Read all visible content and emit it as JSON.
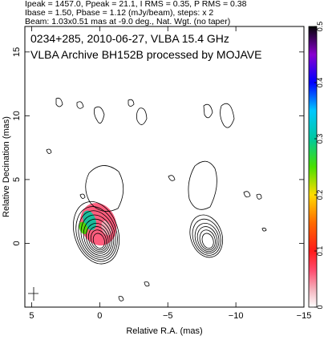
{
  "header": {
    "lines": [
      "Ipeak = 1457.0, Ppeak = 21.1, I RMS = 0.35, P RMS = 0.38",
      "Ibase = 1.50, Pbase = 1.12 (mJy/beam), steps: x 2",
      "Beam: 1.03x0.51 mas at -9.0 deg., Nat. Wgt. (no taper)"
    ]
  },
  "chart_data": {
    "type": "contour",
    "title_lines": [
      "0234+285, 2010-06-27, VLBA 15.4 GHz",
      "VLBA Archive BH152B processed by MOJAVE"
    ],
    "xlabel": "Relative R.A. (mas)",
    "ylabel": "Relative Decination (mas)",
    "xlim": [
      5.5,
      -15
    ],
    "ylim": [
      -5,
      17
    ],
    "xticks": [
      5,
      0,
      -5,
      -10,
      -15
    ],
    "yticks": [
      0,
      5,
      10,
      15
    ],
    "colorbar": {
      "range": [
        0,
        0.5
      ],
      "ticks": [
        0,
        0.1,
        0.2,
        0.3,
        0.4,
        0.5
      ]
    },
    "panels": [
      {
        "name": "Stokes I contours (left)",
        "center": [
          0,
          0
        ],
        "contours": [
          {
            "rx": 0.4,
            "ry": 0.6
          },
          {
            "rx": 0.55,
            "ry": 0.8
          },
          {
            "rx": 0.7,
            "ry": 1.0
          },
          {
            "rx": 0.85,
            "ry": 1.2
          },
          {
            "rx": 1.0,
            "ry": 1.45
          },
          {
            "rx": 1.15,
            "ry": 1.7
          },
          {
            "rx": 1.3,
            "ry": 1.95
          },
          {
            "rx": 1.45,
            "ry": 2.2
          },
          {
            "rx": 1.6,
            "ry": 2.5
          }
        ],
        "color_blobs": [
          {
            "x": 0.1,
            "y": 1.5,
            "rx": 1.3,
            "ry": 1.7,
            "value": 0.06
          },
          {
            "x": 0.75,
            "y": 1.8,
            "rx": 0.45,
            "ry": 0.8,
            "value": 0.28
          },
          {
            "x": -0.5,
            "y": 1.2,
            "rx": 0.35,
            "ry": 0.6,
            "value": 0.03
          },
          {
            "x": 1.2,
            "y": 1.2,
            "rx": 0.3,
            "ry": 0.5,
            "value": 0.25
          }
        ]
      },
      {
        "name": "Polarized intensity contours (right)",
        "center": [
          -8,
          0
        ],
        "contours": [
          {
            "rx": 0.4,
            "ry": 0.6
          },
          {
            "rx": 0.55,
            "ry": 0.8
          },
          {
            "rx": 0.7,
            "ry": 1.0
          },
          {
            "rx": 0.85,
            "ry": 1.2
          },
          {
            "rx": 1.0,
            "ry": 1.45
          },
          {
            "rx": 1.15,
            "ry": 1.7
          }
        ]
      }
    ]
  }
}
